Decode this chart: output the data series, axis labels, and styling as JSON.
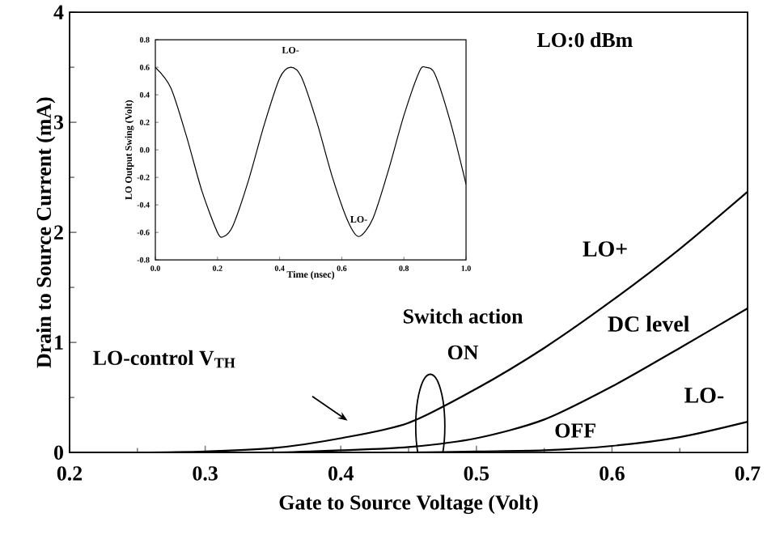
{
  "chart_data": [
    {
      "type": "line",
      "xlabel": "Gate to Source Voltage (Volt)",
      "ylabel": "Drain to Source Current (mA)",
      "x": [
        0.2,
        0.25,
        0.3,
        0.35,
        0.4,
        0.45,
        0.5,
        0.55,
        0.6,
        0.65,
        0.7
      ],
      "xlim": [
        0.2,
        0.7
      ],
      "ylim": [
        0,
        4
      ],
      "xticks": [
        0.2,
        0.3,
        0.4,
        0.5,
        0.6,
        0.7
      ],
      "yticks": [
        0,
        1,
        2,
        3,
        4
      ],
      "grid": false,
      "marker": "none",
      "line_style": "solid",
      "series": [
        {
          "name": "LO+",
          "color": "#000000",
          "values": [
            0,
            0,
            0.01,
            0.04,
            0.13,
            0.27,
            0.58,
            0.95,
            1.38,
            1.85,
            2.37
          ]
        },
        {
          "name": "DC level",
          "color": "#000000",
          "values": [
            0,
            0,
            0,
            0,
            0.02,
            0.05,
            0.13,
            0.3,
            0.6,
            0.95,
            1.31
          ]
        },
        {
          "name": "LO-",
          "color": "#000000",
          "values": [
            0,
            0,
            0,
            0,
            0,
            0,
            0.01,
            0.02,
            0.06,
            0.14,
            0.28
          ]
        }
      ],
      "annotations": [
        "LO:0 dBm",
        "Switch action",
        "ON",
        "OFF",
        "LO-control V$_{TH}$"
      ]
    },
    {
      "type": "line",
      "xlabel": "Time (nsec)",
      "ylabel": "LO Output Swing (Volt)",
      "xlim": [
        0,
        1
      ],
      "ylim": [
        -0.8,
        0.8
      ],
      "xticks": [
        {
          "value": 0,
          "label": "0.0"
        },
        0.2,
        0.4,
        0.6,
        0.8,
        {
          "value": 1,
          "label": "1.0"
        }
      ],
      "yticks": [
        -0.8,
        -0.6,
        -0.4,
        -0.2,
        {
          "value": 0,
          "label": "0.0"
        },
        0.2,
        0.4,
        0.6,
        0.8
      ],
      "grid": false,
      "marker": "none",
      "line_style": "solid",
      "series": [
        {
          "color": "#000000",
          "x": [
            0,
            0.05,
            0.1,
            0.15,
            0.2,
            0.22,
            0.25,
            0.3,
            0.35,
            0.4,
            0.435,
            0.47,
            0.52,
            0.57,
            0.62,
            0.655,
            0.7,
            0.75,
            0.8,
            0.85,
            0.87,
            0.9,
            0.95,
            1.0
          ],
          "values": [
            0.6,
            0.45,
            0.1,
            -0.3,
            -0.6,
            -0.63,
            -0.55,
            -0.22,
            0.18,
            0.52,
            0.6,
            0.53,
            0.2,
            -0.2,
            -0.52,
            -0.63,
            -0.5,
            -0.15,
            0.25,
            0.57,
            0.6,
            0.55,
            0.2,
            -0.25
          ]
        }
      ],
      "annotations": [
        {
          "text": "LO-",
          "x": 0.435,
          "y": 0.6
        },
        {
          "text": "LO-",
          "x": 0.655,
          "y": -0.63
        }
      ]
    }
  ]
}
